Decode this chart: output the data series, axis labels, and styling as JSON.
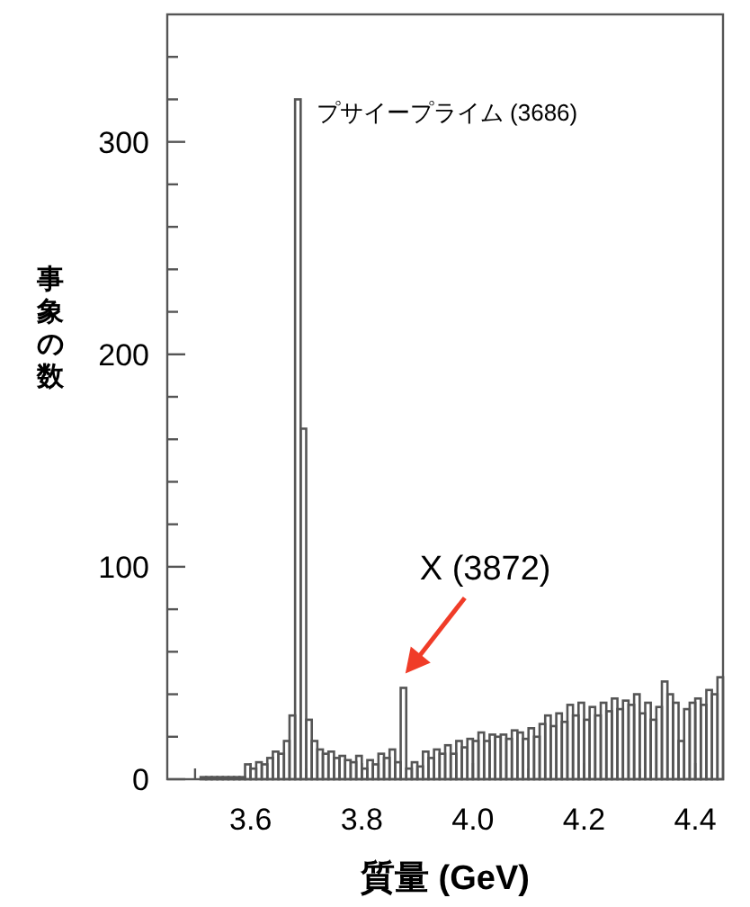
{
  "chart_data": {
    "type": "histogram",
    "xlabel": "質量 (GeV)",
    "ylabel": "事象の数",
    "color": "#555555",
    "bins": [
      3.45,
      3.46,
      3.47,
      3.48,
      3.49,
      3.5,
      3.51,
      3.52,
      3.53,
      3.54,
      3.55,
      3.56,
      3.57,
      3.58,
      3.59,
      3.6,
      3.61,
      3.62,
      3.63,
      3.64,
      3.65,
      3.66,
      3.67,
      3.68,
      3.69,
      3.7,
      3.71,
      3.72,
      3.73,
      3.74,
      3.75,
      3.76,
      3.77,
      3.78,
      3.79,
      3.8,
      3.81,
      3.82,
      3.83,
      3.84,
      3.85,
      3.86,
      3.87,
      3.88,
      3.89,
      3.9,
      3.91,
      3.92,
      3.93,
      3.94,
      3.95,
      3.96,
      3.97,
      3.98,
      3.99,
      4.0,
      4.01,
      4.02,
      4.03,
      4.04,
      4.05,
      4.06,
      4.07,
      4.08,
      4.09,
      4.1,
      4.11,
      4.12,
      4.13,
      4.14,
      4.15,
      4.16,
      4.17,
      4.18,
      4.19,
      4.2,
      4.21,
      4.22,
      4.23,
      4.24,
      4.25,
      4.26,
      4.27,
      4.28,
      4.29,
      4.3,
      4.31,
      4.32,
      4.33,
      4.34,
      4.35,
      4.36,
      4.37,
      4.38,
      4.39,
      4.4,
      4.41,
      4.42,
      4.43,
      4.44,
      4.45
    ],
    "values": [
      0,
      0,
      0,
      0,
      0,
      0,
      1,
      1,
      1,
      1,
      1,
      1,
      1,
      1,
      7,
      5,
      8,
      7,
      10,
      13,
      12,
      18,
      30,
      320,
      165,
      28,
      18,
      14,
      12,
      13,
      10,
      11,
      9,
      8,
      11,
      5,
      9,
      7,
      12,
      10,
      14,
      8,
      43,
      5,
      8,
      6,
      13,
      10,
      14,
      12,
      16,
      12,
      18,
      15,
      19,
      18,
      22,
      18,
      21,
      20,
      21,
      19,
      23,
      22,
      19,
      24,
      20,
      26,
      30,
      25,
      31,
      27,
      35,
      30,
      36,
      28,
      34,
      30,
      36,
      32,
      38,
      33,
      37,
      35,
      40,
      31,
      36,
      28,
      34,
      46,
      40,
      36,
      18,
      33,
      36,
      38,
      35,
      42,
      40,
      48
    ],
    "xlim": [
      3.45,
      4.45
    ],
    "ylim": [
      0,
      360
    ],
    "xticks": [
      {
        "value": 3.5,
        "label": null
      },
      3.6,
      {
        "value": 3.7,
        "label": null
      },
      3.8,
      {
        "value": 3.9,
        "label": null
      },
      {
        "value": 4.0,
        "label": "4.0"
      },
      {
        "value": 4.1,
        "label": null
      },
      4.2,
      {
        "value": 4.3,
        "label": null
      },
      4.4
    ],
    "yticks": [
      0,
      {
        "value": 20,
        "label": null
      },
      {
        "value": 40,
        "label": null
      },
      {
        "value": 60,
        "label": null
      },
      {
        "value": 80,
        "label": null
      },
      100,
      {
        "value": 120,
        "label": null
      },
      {
        "value": 140,
        "label": null
      },
      {
        "value": 160,
        "label": null
      },
      {
        "value": 180,
        "label": null
      },
      200,
      {
        "value": 220,
        "label": null
      },
      {
        "value": 240,
        "label": null
      },
      {
        "value": 260,
        "label": null
      },
      {
        "value": 280,
        "label": null
      },
      300,
      {
        "value": 320,
        "label": null
      },
      {
        "value": 340,
        "label": null
      }
    ],
    "annotations": [
      {
        "text": "プサイープライム (3686)",
        "x": 3.686,
        "y": 320
      },
      {
        "text": "X (3872)",
        "x": 3.872,
        "y": 43
      }
    ]
  }
}
